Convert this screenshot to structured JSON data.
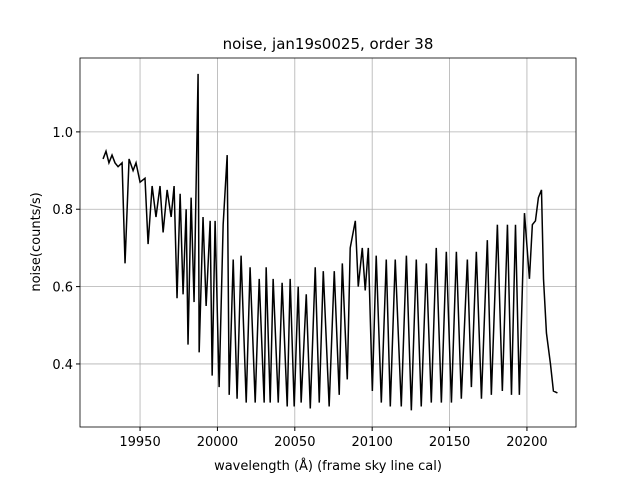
{
  "chart_data": {
    "type": "line",
    "title": "noise, jan19s0025, order 38",
    "xlabel": "wavelength (Å) (frame sky line cal)",
    "ylabel": "noise(counts/s)",
    "xlim": [
      19911.2,
      20231.7
    ],
    "ylim": [
      0.237,
      1.191
    ],
    "xticks": [
      19950,
      20000,
      20050,
      20100,
      20150,
      20200
    ],
    "yticks": [
      0.4,
      0.6,
      0.8,
      {
        "value": 1,
        "label": "1.0"
      }
    ],
    "grid": true,
    "series": [
      {
        "color": "#000000",
        "x": [
          19926.1,
          19928.0,
          19929.9,
          19931.9,
          19933.8,
          19935.8,
          19938.4,
          19940.3,
          19942.9,
          19945.5,
          19947.4,
          19950,
          19953.2,
          19955.2,
          19957.8,
          19960.3,
          19962.9,
          19964.9,
          19967.5,
          19970.1,
          19972.0,
          19973.9,
          19975.9,
          19977.8,
          19979.8,
          19981.0,
          19983.0,
          19984.9,
          19987.5,
          19988.2,
          19990.7,
          19992.7,
          19995.3,
          19996.6,
          19998.5,
          20001.1,
          20003.7,
          20006.3,
          20007.6,
          20010.2,
          20012.7,
          20015.3,
          20018.6,
          20021.1,
          20024.4,
          20027.0,
          20030.2,
          20031.5,
          20034.1,
          20036.0,
          20039.3,
          20041.8,
          20045.1,
          20047.0,
          20049.6,
          20052.2,
          20054.1,
          20057.4,
          20060.0,
          20063.2,
          20065.8,
          20068.4,
          20072.2,
          20075.5,
          20078.7,
          20080.7,
          20083.9,
          20085.8,
          20089.1,
          20091.0,
          20093.6,
          20095.5,
          20097.5,
          20100.1,
          20102.6,
          20105.9,
          20109.1,
          20111.7,
          20114.9,
          20118.8,
          20122.1,
          20125.3,
          20128.5,
          20131.7,
          20135.0,
          20138.2,
          20141.4,
          20144.7,
          20147.9,
          20151.2,
          20154.4,
          20157.6,
          20161.5,
          20164.1,
          20167.3,
          20170.6,
          20174.4,
          20177.0,
          20180.9,
          20184.1,
          20187.4,
          20190.0,
          20192.6,
          20195.1,
          20198.4,
          20201.6,
          20203.5,
          20205.5,
          20207.4,
          20209.4,
          20210.7,
          20212.6,
          20215.2,
          20217.1,
          20219.7
        ],
        "values": [
          0.93,
          0.95,
          0.92,
          0.94,
          0.92,
          0.91,
          0.92,
          0.66,
          0.93,
          0.9,
          0.92,
          0.87,
          0.88,
          0.71,
          0.86,
          0.78,
          0.86,
          0.74,
          0.85,
          0.78,
          0.86,
          0.57,
          0.84,
          0.58,
          0.8,
          0.45,
          0.83,
          0.56,
          1.15,
          0.43,
          0.78,
          0.55,
          0.77,
          0.37,
          0.77,
          0.34,
          0.76,
          0.94,
          0.32,
          0.67,
          0.31,
          0.68,
          0.3,
          0.65,
          0.3,
          0.62,
          0.3,
          0.65,
          0.3,
          0.62,
          0.3,
          0.61,
          0.29,
          0.62,
          0.29,
          0.6,
          0.3,
          0.58,
          0.285,
          0.65,
          0.3,
          0.64,
          0.29,
          0.64,
          0.32,
          0.66,
          0.36,
          0.7,
          0.77,
          0.6,
          0.7,
          0.59,
          0.7,
          0.33,
          0.68,
          0.3,
          0.67,
          0.29,
          0.67,
          0.29,
          0.68,
          0.28,
          0.67,
          0.29,
          0.66,
          0.3,
          0.7,
          0.3,
          0.69,
          0.3,
          0.69,
          0.31,
          0.67,
          0.34,
          0.69,
          0.31,
          0.72,
          0.32,
          0.76,
          0.33,
          0.76,
          0.32,
          0.76,
          0.32,
          0.79,
          0.62,
          0.76,
          0.77,
          0.83,
          0.85,
          0.62,
          0.48,
          0.4,
          0.33,
          0.325
        ]
      }
    ]
  }
}
